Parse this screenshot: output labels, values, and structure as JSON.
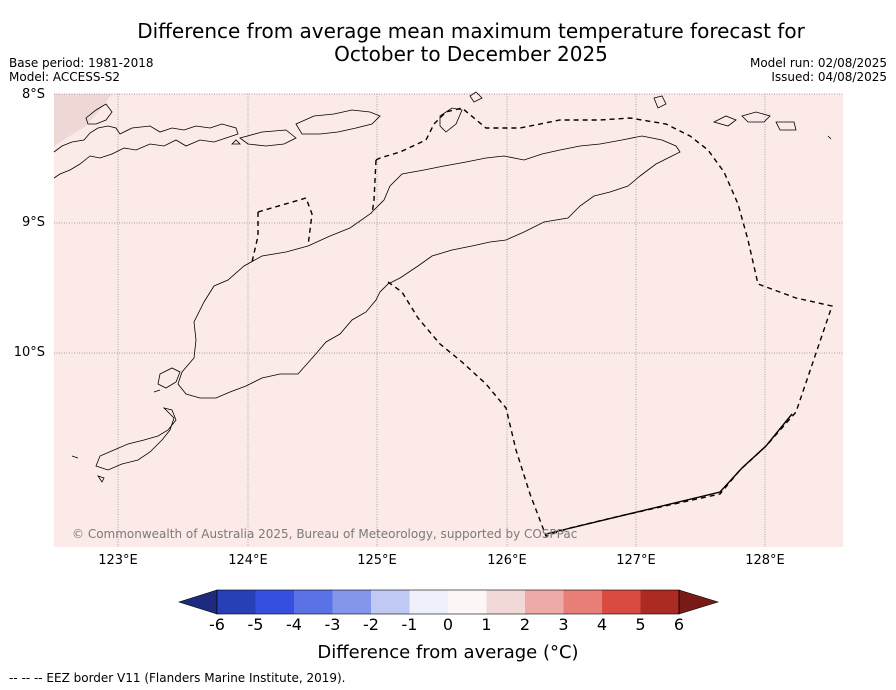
{
  "title_line1": "Difference from average mean maximum temperature forecast for",
  "title_line2": "October to December 2025",
  "base_period": "Base period: 1981-2018",
  "model": "Model: ACCESS-S2",
  "model_run": "Model run: 02/08/2025",
  "issued": "Issued: 04/08/2025",
  "map": {
    "lat_labels": [
      "8°S",
      "9°S",
      "10°S"
    ],
    "lon_labels": [
      "123°E",
      "124°E",
      "125°E",
      "126°E",
      "127°E",
      "128°E"
    ],
    "fill_color": "#fbeae8",
    "corner_color": "#efd7d5",
    "attribution": "© Commonwealth of Australia 2025, Bureau of Meteorology, supported by COSPPac"
  },
  "colorbar": {
    "ticks": [
      "-6",
      "-5",
      "-4",
      "-3",
      "-2",
      "-1",
      "0",
      "1",
      "2",
      "3",
      "4",
      "5",
      "6"
    ],
    "colors": [
      "#1e2a7e",
      "#2840b6",
      "#3550e0",
      "#5b72e6",
      "#8396ec",
      "#c0c8f4",
      "#eef0fc",
      "#fdf6f6",
      "#f2d9d7",
      "#eeaaa6",
      "#e77f78",
      "#d94a40",
      "#ab2a22",
      "#7a1a16"
    ],
    "label": "Difference from average ($^\\circ$C)",
    "label_display": "Difference from average (°C)"
  },
  "footnote": "--  --  -- EEZ border V11 (Flanders Marine Institute, 2019)."
}
